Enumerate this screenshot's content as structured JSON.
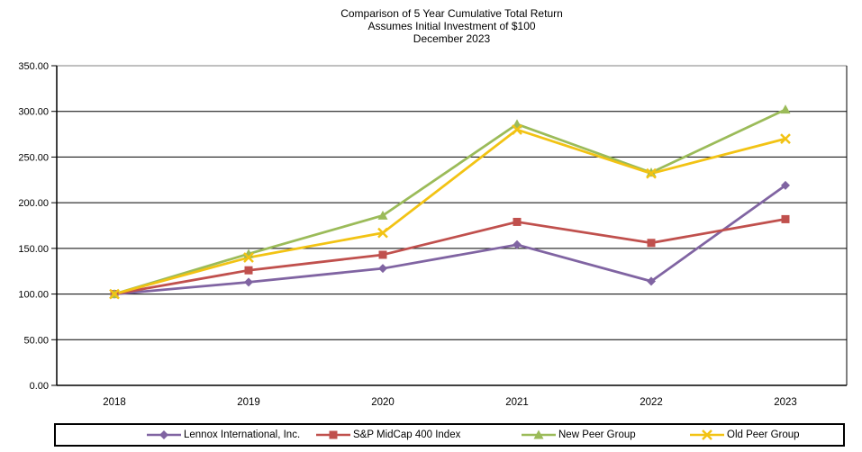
{
  "title": {
    "line1": "Comparison of 5 Year Cumulative Total Return",
    "line2": "Assumes Initial Investment of $100",
    "line3": "December 2023"
  },
  "chart_data": {
    "type": "line",
    "categories": [
      "2018",
      "2019",
      "2020",
      "2021",
      "2022",
      "2023"
    ],
    "series": [
      {
        "name": "Lennox International, Inc.",
        "marker": "diamond",
        "color": "#8064A2",
        "values": [
          100,
          113,
          128,
          154,
          114,
          219
        ]
      },
      {
        "name": "S&P MidCap 400 Index",
        "marker": "square",
        "color": "#C0504D",
        "values": [
          100,
          126,
          143,
          179,
          156,
          182
        ]
      },
      {
        "name": "New Peer Group",
        "marker": "triangle",
        "color": "#9BBB59",
        "values": [
          100,
          144,
          186,
          286,
          233,
          302
        ]
      },
      {
        "name": "Old Peer Group",
        "marker": "x",
        "color": "#F2C314",
        "values": [
          100,
          140,
          167,
          280,
          232,
          270
        ]
      }
    ],
    "ylim": [
      0,
      350
    ],
    "ytick_step": 50,
    "ytick_labels": [
      "0.00",
      "50.00",
      "100.00",
      "150.00",
      "200.00",
      "250.00",
      "300.00",
      "350.00"
    ],
    "grid": true,
    "gridline_color": "#000000",
    "top_border_color": "#808080",
    "legend_position": "bottom"
  }
}
